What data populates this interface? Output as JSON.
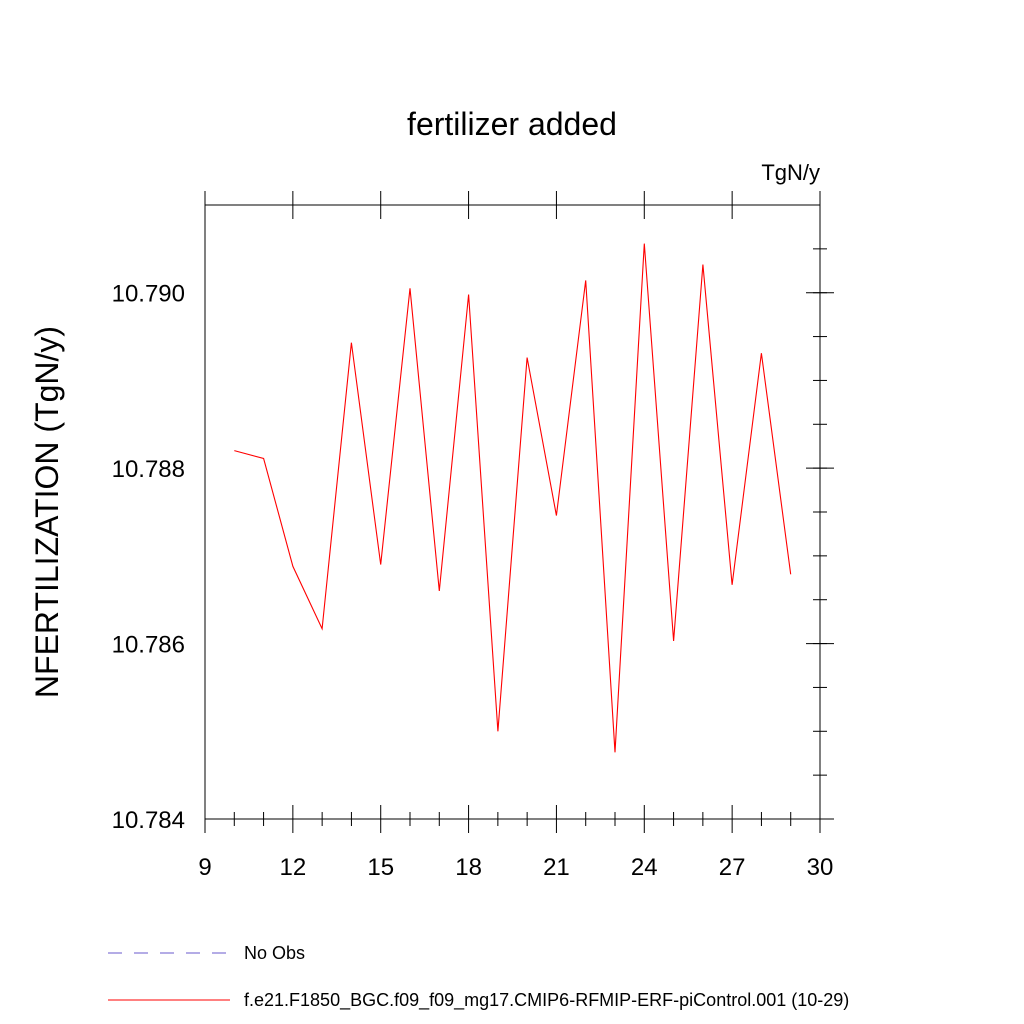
{
  "chart_data": {
    "type": "line",
    "title": "fertilizer added",
    "units": "TgN/y",
    "xlabel": "",
    "ylabel": "NFERTILIZATION  (TgN/y)",
    "xlim": [
      9,
      30
    ],
    "ylim": [
      10.784,
      10.791
    ],
    "x_ticks": [
      9,
      12,
      15,
      18,
      21,
      24,
      27,
      30
    ],
    "x_tick_labels": [
      "9",
      "12",
      "15",
      "18",
      "21",
      "24",
      "27",
      "30"
    ],
    "y_ticks": [
      10.784,
      10.786,
      10.788,
      10.79
    ],
    "y_tick_labels": [
      "10.784",
      "10.786",
      "10.788",
      "10.790"
    ],
    "grid": false,
    "legend_position": "bottom",
    "series": [
      {
        "name": "f.e21.F1850_BGC.f09_f09_mg17.CMIP6-RFMIP-ERF-piControl.001 (10-29)",
        "color": "#ff0000",
        "style": "solid",
        "x": [
          10,
          11,
          12,
          13,
          14,
          15,
          16,
          17,
          18,
          19,
          20,
          21,
          22,
          23,
          24,
          25,
          26,
          27,
          28,
          29
        ],
        "y": [
          10.7882,
          10.78811,
          10.78688,
          10.78617,
          10.78943,
          10.7869,
          10.79005,
          10.7866,
          10.78998,
          10.785,
          10.78926,
          10.78746,
          10.79014,
          10.78476,
          10.79056,
          10.78603,
          10.79032,
          10.78667,
          10.78931,
          10.78679
        ]
      }
    ],
    "legend": [
      {
        "label": "No Obs",
        "color": "#6a5acd",
        "style": "dashed"
      },
      {
        "label": "f.e21.F1850_BGC.f09_f09_mg17.CMIP6-RFMIP-ERF-piControl.001 (10-29)",
        "color": "#ff0000",
        "style": "solid"
      }
    ]
  }
}
